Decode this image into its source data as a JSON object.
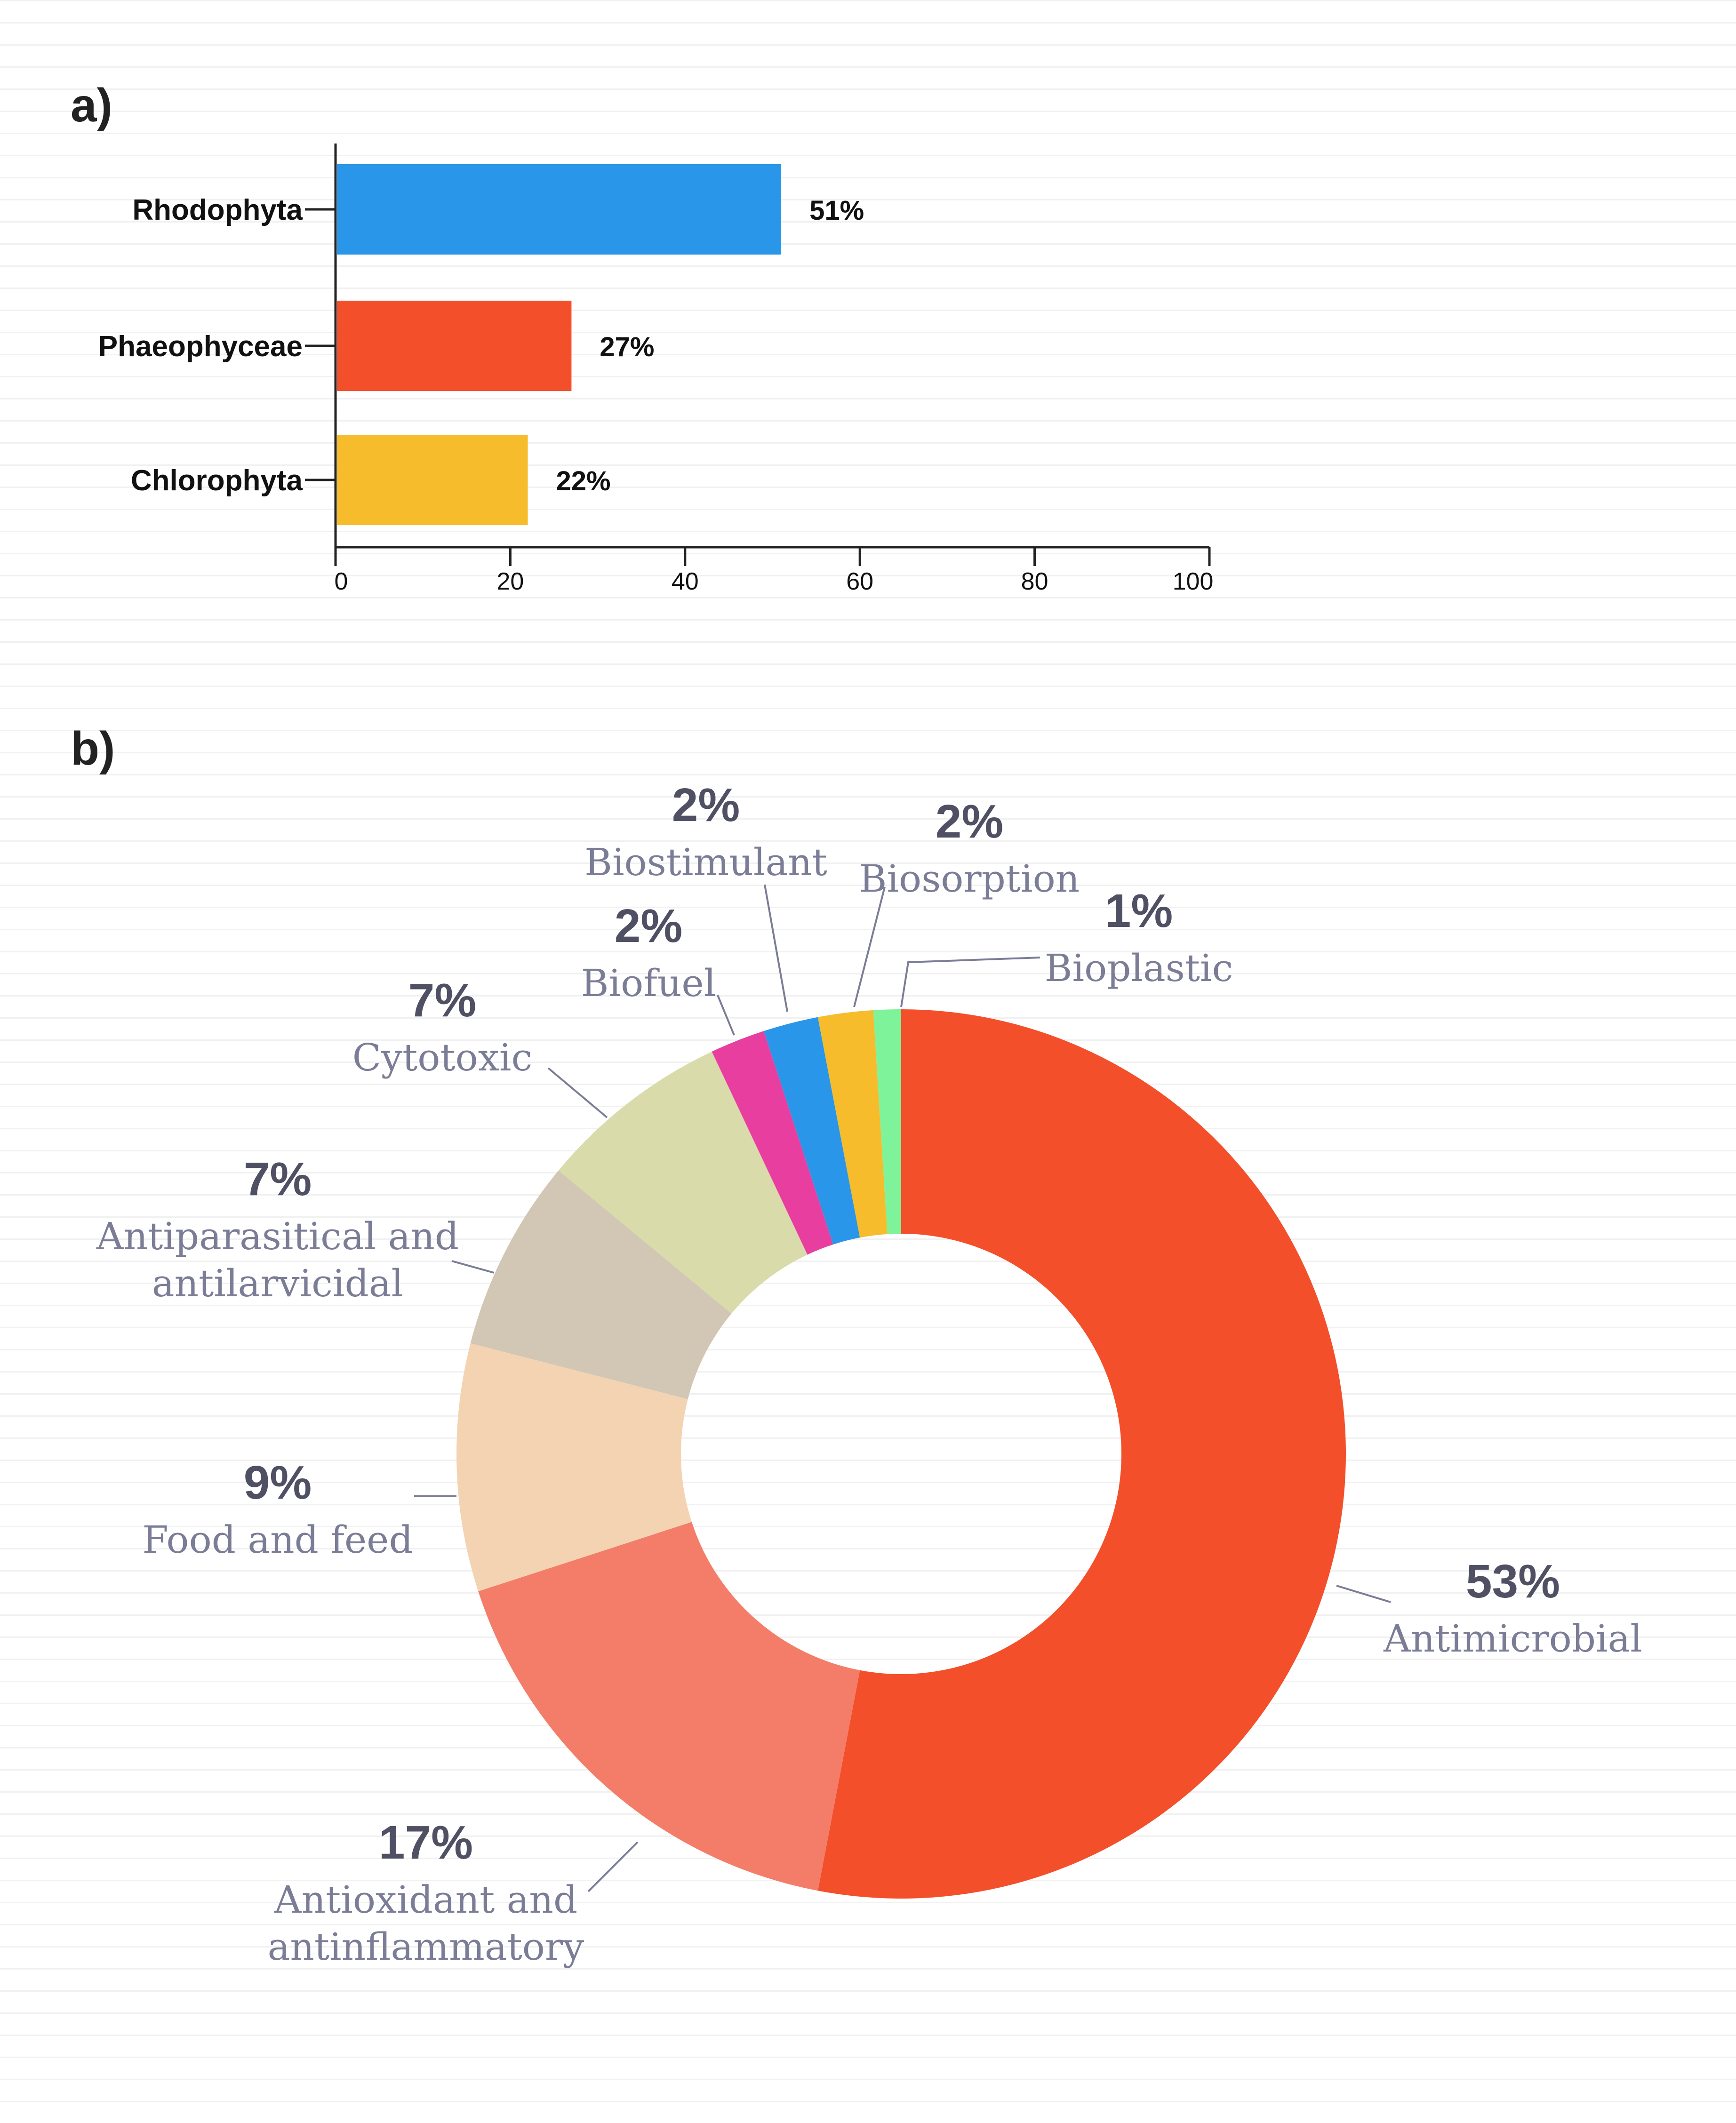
{
  "panels": {
    "a": "a)",
    "b": "b)"
  },
  "chart_data": [
    {
      "type": "bar",
      "orientation": "horizontal",
      "panel": "a)",
      "categories": [
        "Rhodophyta",
        "Phaeophyceae",
        "Chlorophyta"
      ],
      "values": [
        51,
        27,
        22
      ],
      "value_labels": [
        "51%",
        "27%",
        "22%"
      ],
      "colors": [
        "#2a96e9",
        "#f44f2b",
        "#f6bc2c"
      ],
      "xlim": [
        0,
        100
      ],
      "xticks": [
        0,
        20,
        40,
        60,
        80,
        100
      ],
      "xtick_labels": [
        "0",
        "20",
        "40",
        "60",
        "80",
        "100"
      ],
      "grid": false
    },
    {
      "type": "pie",
      "donut": true,
      "panel": "b)",
      "slices": [
        {
          "label": "Antimicrobial",
          "value": 53,
          "pct_label": "53%",
          "color": "#f44f2b",
          "label_lines": [
            "Antimicrobial"
          ]
        },
        {
          "label": "Antioxidant and antinflammatory",
          "value": 17,
          "pct_label": "17%",
          "color": "#f37d68",
          "label_lines": [
            "Antioxidant and",
            "antinflammatory"
          ]
        },
        {
          "label": "Food and feed",
          "value": 9,
          "pct_label": "9%",
          "color": "#f4d3b3",
          "label_lines": [
            "Food and feed"
          ]
        },
        {
          "label": "Antiparasitical and antilarvicidal",
          "value": 7,
          "pct_label": "7%",
          "color": "#d2c6b4",
          "label_lines": [
            "Antiparasitical and",
            "antilarvicidal"
          ]
        },
        {
          "label": "Cytotoxic",
          "value": 7,
          "pct_label": "7%",
          "color": "#d9dbab",
          "label_lines": [
            "Cytotoxic"
          ]
        },
        {
          "label": "Biofuel",
          "value": 2,
          "pct_label": "2%",
          "color": "#e83ea0",
          "label_lines": [
            "Biofuel"
          ]
        },
        {
          "label": "Biostimulant",
          "value": 2,
          "pct_label": "2%",
          "color": "#2a96e9",
          "label_lines": [
            "Biostimulant"
          ]
        },
        {
          "label": "Biosorption",
          "value": 2,
          "pct_label": "2%",
          "color": "#f6bc2c",
          "label_lines": [
            "Biosorption"
          ]
        },
        {
          "label": "Bioplastic",
          "value": 1,
          "pct_label": "1%",
          "color": "#7ff39a",
          "label_lines": [
            "Bioplastic"
          ]
        }
      ]
    }
  ]
}
